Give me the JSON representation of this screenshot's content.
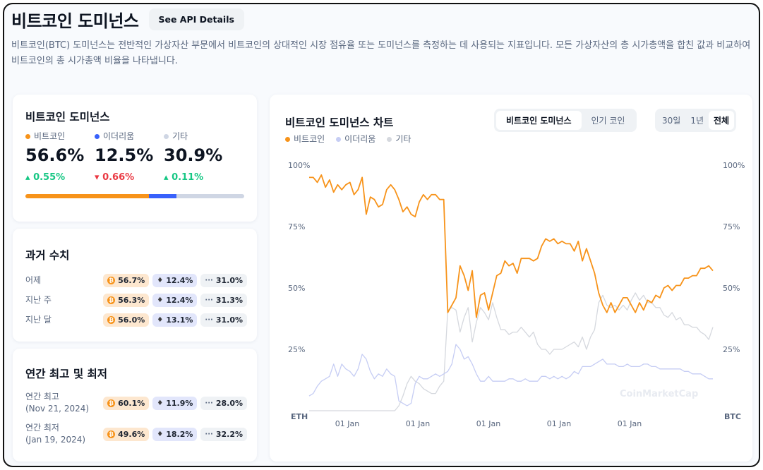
{
  "header": {
    "title": "비트코인 도미넌스",
    "api_button": "See API Details"
  },
  "description": "비트코인(BTC) 도미넌스는 전반적인 가상자산 부문에서 비트코인의 상대적인 시장 점유율 또는 도미넌스를 측정하는 데 사용되는 지표입니다. 모든 가상자산의 총 시가총액을 합친 값과 비교하여 비트코인의 총 시가총액 비율을 나타냅니다.",
  "colors": {
    "btc": "#f7931a",
    "eth": "#3861fb",
    "eth_line": "#c6cdf4",
    "other": "#cfd6e4",
    "other_line": "#d5d8de",
    "up": "#16c784",
    "down": "#ea3943"
  },
  "dominance": {
    "title": "비트코인 도미넌스",
    "items": [
      {
        "label": "비트코인",
        "value": "56.6%",
        "change": "0.55%",
        "direction": "up",
        "share": 56.6
      },
      {
        "label": "이더리움",
        "value": "12.5%",
        "change": "0.66%",
        "direction": "down",
        "share": 12.5
      },
      {
        "label": "기타",
        "value": "30.9%",
        "change": "0.11%",
        "direction": "up",
        "share": 30.9
      }
    ]
  },
  "history": {
    "title": "과거 수치",
    "rows": [
      {
        "label": "어제",
        "btc": "56.7%",
        "eth": "12.4%",
        "other": "31.0%"
      },
      {
        "label": "지난 주",
        "btc": "56.3%",
        "eth": "12.4%",
        "other": "31.3%"
      },
      {
        "label": "지난 달",
        "btc": "56.0%",
        "eth": "13.1%",
        "other": "31.0%"
      }
    ]
  },
  "yearly": {
    "title": "연간 최고 및 최저",
    "rows": [
      {
        "label": "연간 최고",
        "date": "(Nov 21, 2024)",
        "btc": "60.1%",
        "eth": "11.9%",
        "other": "28.0%"
      },
      {
        "label": "연간 최저",
        "date": "(Jan 19, 2024)",
        "btc": "49.6%",
        "eth": "18.2%",
        "other": "32.2%"
      }
    ]
  },
  "chart": {
    "title": "비트코인 도미넌스 차트",
    "tabs": [
      "비트코인 도미넌스",
      "인기 코인"
    ],
    "active_tab": 0,
    "ranges": [
      "30일",
      "1년",
      "전체"
    ],
    "active_range": 2,
    "legend": [
      "비트코인",
      "이더리움",
      "기타"
    ],
    "left_axis_name": "ETH",
    "right_axis_name": "BTC",
    "y_ticks": [
      "100%",
      "75%",
      "50%",
      "25%"
    ],
    "x_ticks": [
      "01 Jan",
      "01 Jan",
      "01 Jan",
      "01 Jan",
      "01 Jan"
    ],
    "watermark": "CoinMarketCap"
  },
  "chart_data": {
    "type": "line",
    "ylim": [
      0,
      100
    ],
    "grid": false,
    "legend_position": "top-left",
    "series": [
      {
        "name": "비트코인",
        "color": "#f7931a",
        "values": [
          95,
          95,
          93,
          96,
          91,
          94,
          89,
          92,
          90,
          92,
          93,
          88,
          90,
          95,
          80,
          87,
          86,
          83,
          84,
          90,
          92,
          90,
          86,
          81,
          83,
          80,
          79,
          85,
          88,
          86,
          88,
          88,
          86,
          86,
          40,
          43,
          46,
          59,
          55,
          49,
          57,
          38,
          47,
          48,
          41,
          48,
          55,
          56,
          61,
          59,
          60,
          56,
          62,
          62,
          62,
          61,
          62,
          67,
          70,
          69,
          70,
          68,
          69,
          68,
          68,
          65,
          69,
          61,
          66,
          61,
          56,
          48,
          43,
          40,
          44,
          40,
          43,
          46,
          46,
          43,
          40,
          44,
          41,
          45,
          44,
          47,
          46,
          50,
          51,
          49,
          51,
          51,
          54,
          54,
          55,
          55,
          58,
          58,
          59,
          57
        ]
      },
      {
        "name": "이더리움",
        "color": "#c6cdf4",
        "values": [
          6,
          7,
          10,
          12,
          13,
          14,
          19,
          14,
          19,
          17,
          16,
          14,
          17,
          23,
          21,
          16,
          13,
          15,
          14,
          17,
          15,
          14,
          4,
          3,
          2,
          3,
          11,
          14,
          13,
          13,
          14,
          15,
          14,
          15,
          16,
          19,
          27,
          25,
          21,
          22,
          19,
          15,
          12,
          12,
          14,
          12,
          12,
          12,
          12,
          13,
          13,
          12,
          12,
          13,
          12,
          12,
          12,
          14,
          14,
          13,
          14,
          13,
          14,
          13,
          14,
          16,
          15,
          18,
          18,
          18,
          19,
          20,
          21,
          19,
          19,
          19,
          18,
          18,
          19,
          18,
          18,
          18,
          19,
          19,
          18,
          18,
          17,
          17,
          17,
          17,
          17,
          17,
          16,
          16,
          15,
          15,
          15,
          14,
          13,
          13
        ]
      },
      {
        "name": "기타",
        "color": "#d5d8de",
        "values": [
          0,
          0,
          0,
          0,
          0,
          0,
          0,
          0,
          0,
          0,
          0,
          0,
          0,
          0,
          0,
          0,
          0,
          0,
          0,
          0,
          0,
          0,
          2,
          6,
          11,
          14,
          12,
          11,
          9,
          8,
          7,
          7,
          10,
          12,
          41,
          42,
          41,
          32,
          38,
          42,
          28,
          36,
          42,
          40,
          37,
          44,
          38,
          33,
          33,
          31,
          32,
          32,
          34,
          32,
          30,
          32,
          27,
          25,
          25,
          23,
          25,
          25,
          25,
          26,
          27,
          28,
          26,
          30,
          25,
          30,
          33,
          44,
          47,
          43,
          42,
          43,
          41,
          43,
          41,
          45,
          48,
          45,
          47,
          44,
          44,
          42,
          42,
          39,
          38,
          40,
          37,
          38,
          35,
          35,
          34,
          34,
          32,
          31,
          29,
          34
        ]
      }
    ]
  }
}
